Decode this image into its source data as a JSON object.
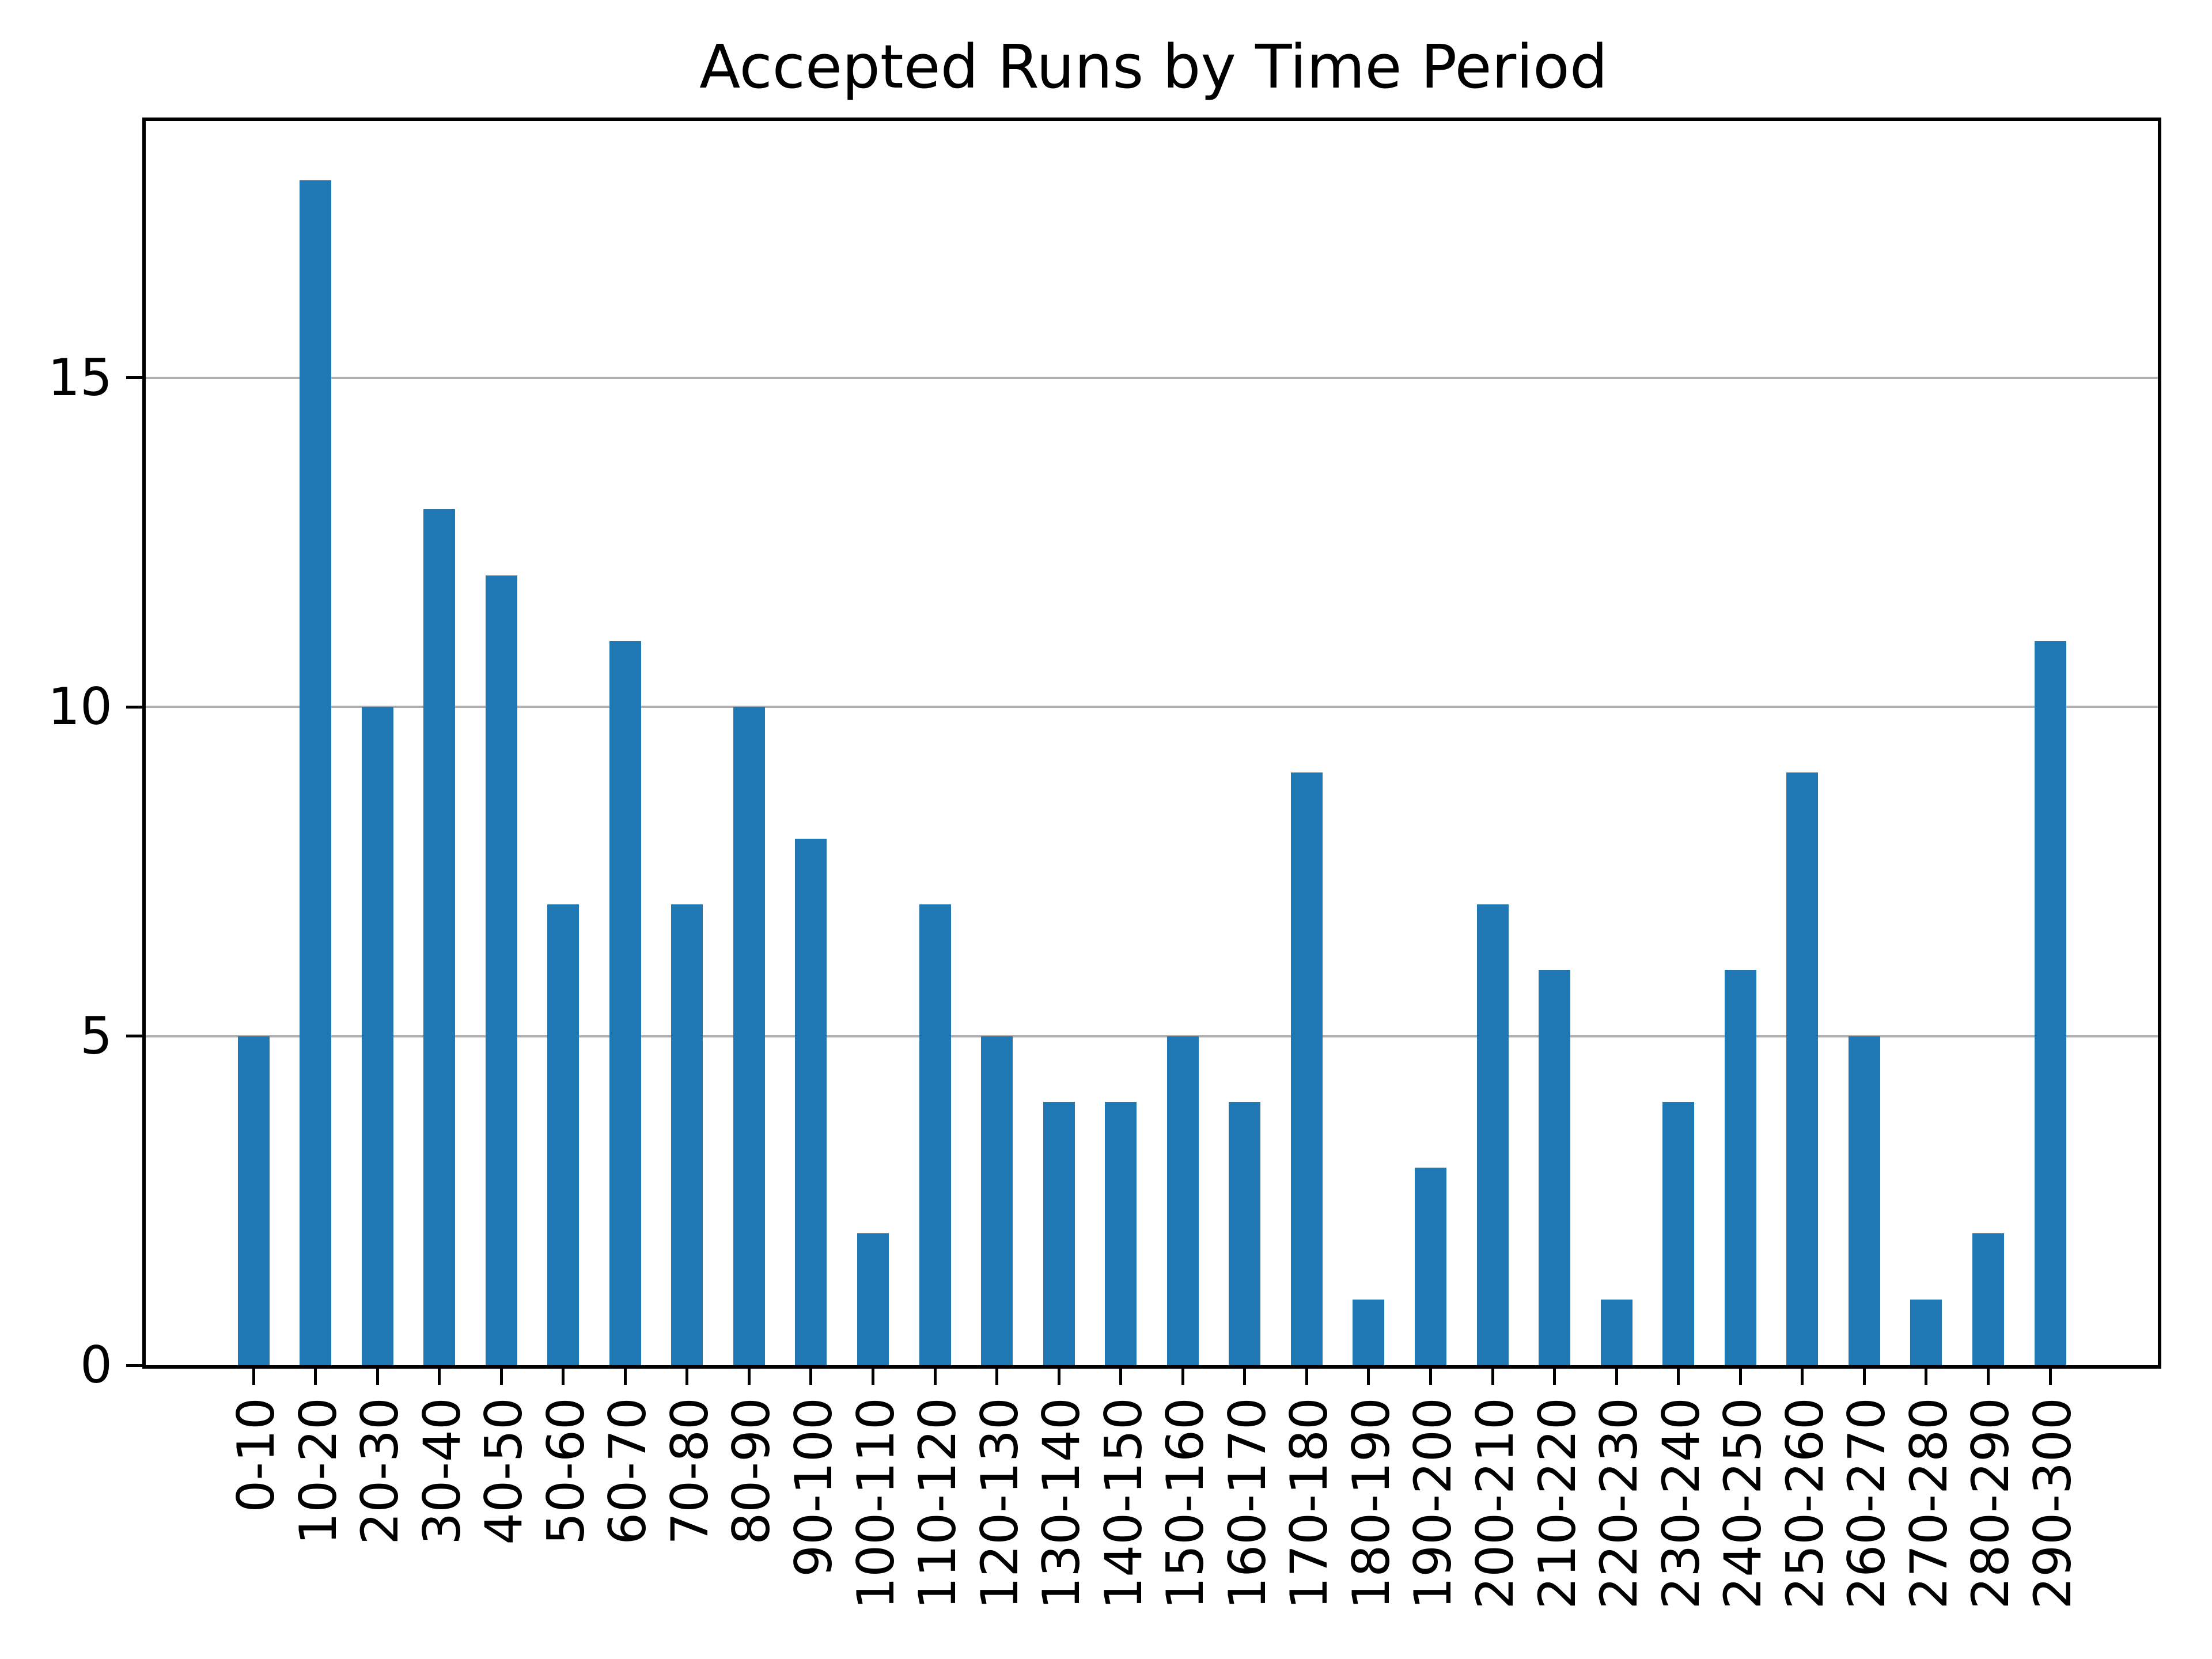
{
  "chart_data": {
    "type": "bar",
    "title": "Accepted Runs by Time Period",
    "categories": [
      "0-10",
      "10-20",
      "20-30",
      "30-40",
      "40-50",
      "50-60",
      "60-70",
      "70-80",
      "80-90",
      "90-100",
      "100-110",
      "110-120",
      "120-130",
      "130-140",
      "140-150",
      "150-160",
      "160-170",
      "170-180",
      "180-190",
      "190-200",
      "200-210",
      "210-220",
      "220-230",
      "230-240",
      "240-250",
      "250-260",
      "260-270",
      "270-280",
      "280-290",
      "290-300"
    ],
    "values": [
      5,
      18,
      10,
      13,
      12,
      7,
      11,
      7,
      10,
      8,
      2,
      7,
      5,
      4,
      4,
      5,
      4,
      9,
      1,
      3,
      7,
      6,
      1,
      4,
      6,
      9,
      5,
      1,
      2,
      11
    ],
    "xlabel": "",
    "ylabel": "",
    "yticks": [
      0,
      5,
      10,
      15
    ],
    "ylim": [
      0,
      18.9
    ],
    "bar_color": "#1f77b4",
    "grid": true,
    "grid_axis": "y",
    "grid_color": "#b0b0b0",
    "tick_label_rotation_deg": 90,
    "legend": "none"
  }
}
